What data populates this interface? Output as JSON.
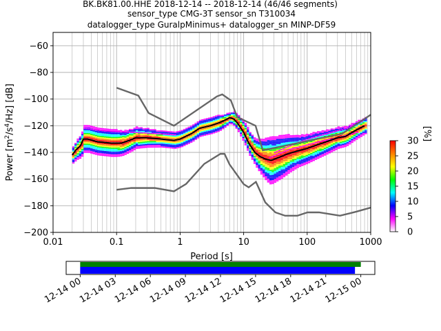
{
  "title": {
    "line1": "BK.BK81.00.HHE   2018-12-14 -- 2018-12-14  (46/46 segments)",
    "line2": "sensor_type CMG-3T sensor_sn T310034",
    "line3": "datalogger_type GuralpMinimus+ datalogger_sn MINP-DF59"
  },
  "chart_data": {
    "type": "heatmap",
    "x_scale": "log",
    "grid": true,
    "xlabel": "Period [s]",
    "ylabel": "Power [m^2/s^4/Hz] [dB]",
    "xlim": [
      0.01,
      1000
    ],
    "ylim": [
      -200,
      -50
    ],
    "x_ticks": [
      {
        "value": 0.01,
        "label": "0.01"
      },
      {
        "value": 0.1,
        "label": "0.1"
      },
      {
        "value": 1,
        "label": "1"
      },
      {
        "value": 10,
        "label": "10"
      },
      {
        "value": 100,
        "label": "100"
      },
      {
        "value": 1000,
        "label": "1000"
      }
    ],
    "y_ticks": [
      {
        "value": -60,
        "label": "−60"
      },
      {
        "value": -80,
        "label": "−80"
      },
      {
        "value": -100,
        "label": "−100"
      },
      {
        "value": -120,
        "label": "−120"
      },
      {
        "value": -140,
        "label": "−140"
      },
      {
        "value": -160,
        "label": "−160"
      },
      {
        "value": -180,
        "label": "−180"
      },
      {
        "value": -200,
        "label": "−200"
      }
    ],
    "mean_curve": [
      [
        0.02,
        -142
      ],
      [
        0.023,
        -138
      ],
      [
        0.027,
        -135
      ],
      [
        0.03,
        -130
      ],
      [
        0.035,
        -130
      ],
      [
        0.05,
        -132
      ],
      [
        0.08,
        -133
      ],
      [
        0.12,
        -133
      ],
      [
        0.16,
        -131
      ],
      [
        0.2,
        -129
      ],
      [
        0.3,
        -129
      ],
      [
        0.5,
        -130
      ],
      [
        0.8,
        -131
      ],
      [
        1.0,
        -130
      ],
      [
        1.5,
        -126
      ],
      [
        2.0,
        -122
      ],
      [
        3.0,
        -120
      ],
      [
        4.0,
        -118
      ],
      [
        5.0,
        -116
      ],
      [
        6.0,
        -114
      ],
      [
        7.0,
        -115
      ],
      [
        8.0,
        -118
      ],
      [
        10.0,
        -125
      ],
      [
        12.0,
        -133
      ],
      [
        15.0,
        -140
      ],
      [
        18.0,
        -143
      ],
      [
        22.0,
        -145
      ],
      [
        27.0,
        -146
      ],
      [
        35.0,
        -144
      ],
      [
        50.0,
        -141
      ],
      [
        70.0,
        -139
      ],
      [
        100.0,
        -137
      ],
      [
        150.0,
        -134
      ],
      [
        200.0,
        -132
      ],
      [
        300.0,
        -129
      ],
      [
        400.0,
        -128
      ],
      [
        600.0,
        -123
      ],
      [
        800.0,
        -120
      ]
    ],
    "spread": [
      [
        0.02,
        3
      ],
      [
        0.03,
        5
      ],
      [
        0.05,
        5
      ],
      [
        0.1,
        5
      ],
      [
        0.2,
        4
      ],
      [
        0.5,
        3
      ],
      [
        1.0,
        3
      ],
      [
        2.0,
        3
      ],
      [
        4.0,
        3
      ],
      [
        6.0,
        2
      ],
      [
        10.0,
        4
      ],
      [
        15.0,
        5
      ],
      [
        25.0,
        9
      ],
      [
        40.0,
        8
      ],
      [
        70.0,
        6
      ],
      [
        150.0,
        5
      ],
      [
        300.0,
        4
      ],
      [
        800.0,
        3
      ]
    ],
    "outlier_traces": [
      [
        [
          30,
          -140
        ],
        [
          60,
          -134
        ],
        [
          100,
          -130
        ],
        [
          200,
          -126
        ],
        [
          400,
          -122
        ],
        [
          700,
          -117
        ]
      ],
      [
        [
          25,
          -144
        ],
        [
          50,
          -138
        ],
        [
          90,
          -135
        ],
        [
          150,
          -132
        ],
        [
          300,
          -129
        ],
        [
          600,
          -125
        ]
      ],
      [
        [
          0.03,
          -122
        ],
        [
          0.06,
          -124
        ],
        [
          0.15,
          -125
        ],
        [
          0.4,
          -126
        ],
        [
          0.8,
          -127
        ]
      ]
    ],
    "model_high": [
      [
        0.1,
        -91.5
      ],
      [
        0.22,
        -97.4
      ],
      [
        0.32,
        -110.5
      ],
      [
        0.8,
        -120
      ],
      [
        3.8,
        -98
      ],
      [
        4.6,
        -96.5
      ],
      [
        6.3,
        -101
      ],
      [
        7.9,
        -113.5
      ],
      [
        15.4,
        -120
      ],
      [
        20,
        -138.5
      ],
      [
        354.8,
        -126
      ],
      [
        10000,
        -80
      ]
    ],
    "model_low": [
      [
        0.1,
        -168
      ],
      [
        0.17,
        -166.7
      ],
      [
        0.4,
        -166.7
      ],
      [
        0.8,
        -169.2
      ],
      [
        1.24,
        -163.7
      ],
      [
        2.4,
        -148.6
      ],
      [
        4.3,
        -141.1
      ],
      [
        5.0,
        -141.1
      ],
      [
        6.0,
        -149
      ],
      [
        10.0,
        -163.8
      ],
      [
        12.0,
        -166.2
      ],
      [
        15.6,
        -162.1
      ],
      [
        21.9,
        -177.5
      ],
      [
        31.6,
        -185
      ],
      [
        45.0,
        -187.5
      ],
      [
        70.0,
        -187.5
      ],
      [
        101.0,
        -185
      ],
      [
        154.0,
        -185
      ],
      [
        328.0,
        -187.5
      ],
      [
        600.0,
        -184.4
      ],
      [
        10000,
        -168
      ]
    ],
    "colorbar": {
      "label": "[%]",
      "range": [
        0,
        30
      ],
      "ticks": [
        {
          "value": 0,
          "label": "0"
        },
        {
          "value": 5,
          "label": "5"
        },
        {
          "value": 10,
          "label": "10"
        },
        {
          "value": 15,
          "label": "15"
        },
        {
          "value": 20,
          "label": "20"
        },
        {
          "value": 25,
          "label": "25"
        },
        {
          "value": 30,
          "label": "30"
        }
      ],
      "colors": [
        "#ffffff",
        "#ff00ff",
        "#0000ff",
        "#00ffff",
        "#00ff00",
        "#ffff00",
        "#ff8000",
        "#ff0000"
      ]
    },
    "coverage": {
      "time_ticks": [
        {
          "hours": 0,
          "label": "12-14 00"
        },
        {
          "hours": 3,
          "label": "12-14 03"
        },
        {
          "hours": 6,
          "label": "12-14 06"
        },
        {
          "hours": 9,
          "label": "12-14 09"
        },
        {
          "hours": 12,
          "label": "12-14 12"
        },
        {
          "hours": 15,
          "label": "12-14 15"
        },
        {
          "hours": 18,
          "label": "12-14 18"
        },
        {
          "hours": 21,
          "label": "12-14 21"
        },
        {
          "hours": 24,
          "label": "12-15 00"
        }
      ],
      "range_hours": [
        -1.2,
        25.2
      ],
      "data_bar": {
        "start": 0,
        "end": 24,
        "color": "#008000"
      },
      "psd_bar": {
        "start": 0,
        "end": 23.5,
        "color": "#0000ff"
      }
    }
  }
}
